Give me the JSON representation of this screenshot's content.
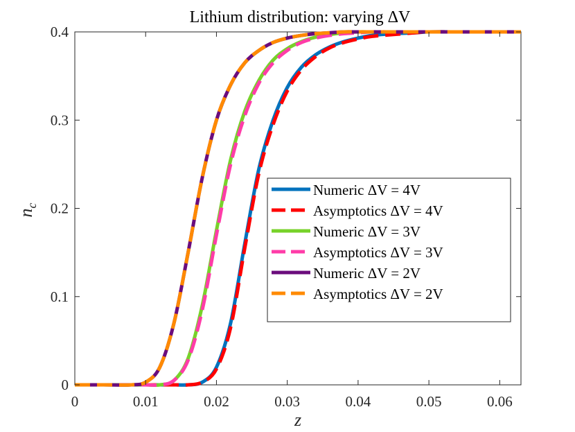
{
  "chart_data": {
    "type": "line",
    "title": "Lithium distribution: varying ΔV",
    "xlabel": "z",
    "ylabel": "n",
    "ylabel_subscript": "c",
    "xlim": [
      0,
      0.063
    ],
    "ylim": [
      0,
      0.4
    ],
    "xticks": [
      0,
      0.01,
      0.02,
      0.03,
      0.04,
      0.05,
      0.06
    ],
    "xtick_labels": [
      "0",
      "0.01",
      "0.02",
      "0.03",
      "0.04",
      "0.05",
      "0.06"
    ],
    "yticks": [
      0,
      0.1,
      0.2,
      0.3,
      0.4
    ],
    "ytick_labels": [
      "0",
      "0.1",
      "0.2",
      "0.3",
      "0.4"
    ],
    "grid": false,
    "legend_position": "center-right",
    "x": [
      0,
      0.004,
      0.008,
      0.01,
      0.012,
      0.014,
      0.016,
      0.018,
      0.02,
      0.022,
      0.024,
      0.026,
      0.028,
      0.03,
      0.032,
      0.034,
      0.036,
      0.038,
      0.04,
      0.042,
      0.045,
      0.048,
      0.05,
      0.055,
      0.06,
      0.063
    ],
    "series": [
      {
        "name": "Numeric ΔV = 4V",
        "color": "#0072BD",
        "dash": "solid",
        "values": [
          0,
          0,
          0,
          0,
          0,
          0,
          0,
          0.003,
          0.02,
          0.07,
          0.16,
          0.245,
          0.3,
          0.337,
          0.36,
          0.374,
          0.383,
          0.389,
          0.393,
          0.396,
          0.398,
          0.399,
          0.4,
          0.4,
          0.4,
          0.4
        ]
      },
      {
        "name": "Asymptotics ΔV = 4V",
        "color": "#FF0000",
        "dash": "dashed",
        "values": [
          0,
          0,
          0,
          0,
          0,
          0,
          0,
          0.003,
          0.018,
          0.065,
          0.155,
          0.24,
          0.295,
          0.333,
          0.357,
          0.372,
          0.382,
          0.388,
          0.392,
          0.395,
          0.397,
          0.399,
          0.4,
          0.4,
          0.4,
          0.4
        ]
      },
      {
        "name": "Numeric ΔV = 3V",
        "color": "#77D22A",
        "dash": "solid",
        "values": [
          0,
          0,
          0,
          0,
          0,
          0.005,
          0.03,
          0.09,
          0.175,
          0.255,
          0.31,
          0.345,
          0.368,
          0.381,
          0.389,
          0.394,
          0.397,
          0.399,
          0.4,
          0.4,
          0.4,
          0.4,
          0.4,
          0.4,
          0.4,
          0.4
        ]
      },
      {
        "name": "Asymptotics ΔV = 3V",
        "color": "#FF3CA8",
        "dash": "dashed",
        "values": [
          0,
          0,
          0,
          0,
          0,
          0.005,
          0.028,
          0.085,
          0.17,
          0.25,
          0.305,
          0.342,
          0.365,
          0.379,
          0.388,
          0.393,
          0.396,
          0.398,
          0.399,
          0.4,
          0.4,
          0.4,
          0.4,
          0.4,
          0.4,
          0.4
        ]
      },
      {
        "name": "Numeric ΔV = 2V",
        "color": "#6B0C7C",
        "dash": "solid",
        "values": [
          0,
          0,
          0,
          0.003,
          0.02,
          0.07,
          0.15,
          0.235,
          0.3,
          0.34,
          0.365,
          0.379,
          0.388,
          0.393,
          0.396,
          0.398,
          0.399,
          0.4,
          0.4,
          0.4,
          0.4,
          0.4,
          0.4,
          0.4,
          0.4,
          0.4
        ]
      },
      {
        "name": "Asymptotics ΔV = 2V",
        "color": "#FF8A00",
        "dash": "dashed",
        "values": [
          0,
          0,
          0,
          0.003,
          0.02,
          0.07,
          0.15,
          0.235,
          0.3,
          0.34,
          0.365,
          0.379,
          0.388,
          0.393,
          0.396,
          0.398,
          0.399,
          0.4,
          0.4,
          0.4,
          0.4,
          0.4,
          0.4,
          0.4,
          0.4,
          0.4
        ]
      }
    ]
  }
}
